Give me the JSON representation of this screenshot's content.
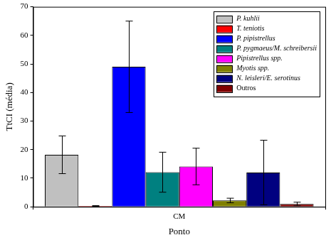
{
  "chart_data": {
    "type": "bar",
    "categories": [
      "CM"
    ],
    "xlabel": "Ponto",
    "ylabel": "TtCI (média)",
    "ylim": [
      0,
      70
    ],
    "yticks": [
      0,
      10,
      20,
      30,
      40,
      50,
      60,
      70
    ],
    "grid": false,
    "legend": "upper right",
    "series": [
      {
        "name": "P. kuhlii",
        "color": "#c0c0c0",
        "values": [
          18.2
        ],
        "errors": [
          6.6
        ]
      },
      {
        "name": "T. teniotis",
        "color": "#ff0000",
        "values": [
          0.3
        ],
        "errors": [
          0.1
        ]
      },
      {
        "name": "P. pipistrellus",
        "color": "#0000ff",
        "values": [
          49
        ],
        "errors": [
          16
        ]
      },
      {
        "name": "P. pygmaeus/M. schreibersii",
        "color": "#008080",
        "values": [
          12.1
        ],
        "errors": [
          7
        ]
      },
      {
        "name": "Pipistrellus spp.",
        "color": "#ff00ff",
        "values": [
          14.1
        ],
        "errors": [
          6.4
        ]
      },
      {
        "name": "Myotis spp.",
        "color": "#808000",
        "values": [
          2.2
        ],
        "errors": [
          0.8
        ]
      },
      {
        "name": "N. leisleri/E. serotinus",
        "color": "#000080",
        "values": [
          12
        ],
        "errors": [
          11.3
        ]
      },
      {
        "name": "Outros",
        "color": "#800000",
        "values": [
          1
        ],
        "errors": [
          0.6
        ]
      }
    ]
  }
}
